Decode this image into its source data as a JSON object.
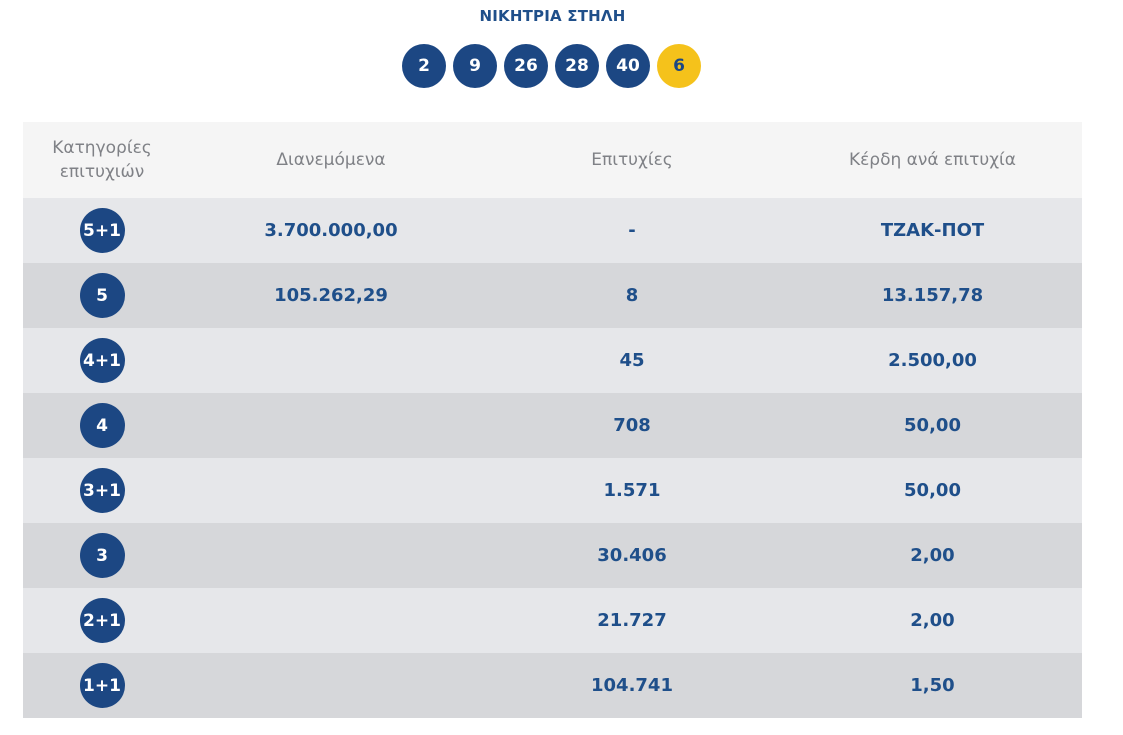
{
  "winning_title": "ΝΙΚΗΤΡΙΑ ΣΤΗΛΗ",
  "numbers": [
    "2",
    "9",
    "26",
    "28",
    "40"
  ],
  "bonus": "6",
  "colors": {
    "ball": "#1c4783",
    "bonus": "#f5c21b",
    "text": "#1f4f8a"
  },
  "table": {
    "headers": {
      "category_line1": "Κατηγορίες",
      "category_line2": "επιτυχιών",
      "distributed": "Διανεμόμενα",
      "winners": "Επιτυχίες",
      "prize": "Κέρδη ανά επιτυχία"
    },
    "rows": [
      {
        "category": "5+1",
        "distributed": "3.700.000,00",
        "winners": "-",
        "prize": "ΤΖΑΚ-ΠΟΤ"
      },
      {
        "category": "5",
        "distributed": "105.262,29",
        "winners": "8",
        "prize": "13.157,78"
      },
      {
        "category": "4+1",
        "distributed": "",
        "winners": "45",
        "prize": "2.500,00"
      },
      {
        "category": "4",
        "distributed": "",
        "winners": "708",
        "prize": "50,00"
      },
      {
        "category": "3+1",
        "distributed": "",
        "winners": "1.571",
        "prize": "50,00"
      },
      {
        "category": "3",
        "distributed": "",
        "winners": "30.406",
        "prize": "2,00"
      },
      {
        "category": "2+1",
        "distributed": "",
        "winners": "21.727",
        "prize": "2,00"
      },
      {
        "category": "1+1",
        "distributed": "",
        "winners": "104.741",
        "prize": "1,50"
      }
    ]
  }
}
